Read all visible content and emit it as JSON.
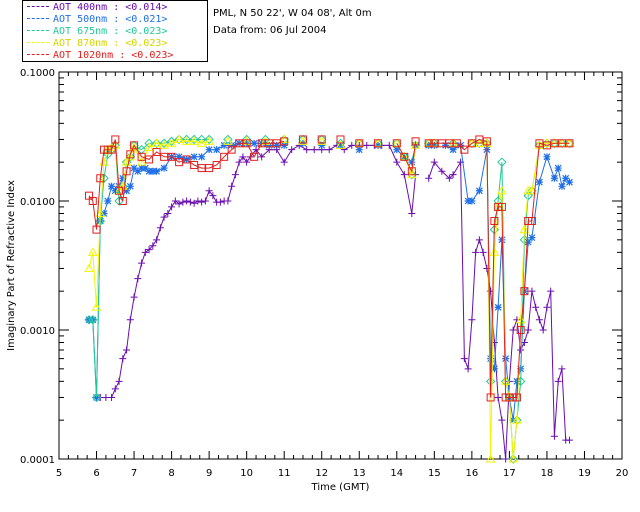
{
  "info": {
    "site": "PML, N 50 22', W 04 08', Alt 0m",
    "date": "Data from: 06 Jul 2004"
  },
  "chart_data": {
    "type": "line",
    "title": "",
    "xlabel": "Time (GMT)",
    "ylabel": "Imaginary Part of Refractive Index",
    "xlim": [
      5,
      20
    ],
    "ylim": [
      0.0001,
      0.1
    ],
    "yscale": "log",
    "x_ticks": [
      "5",
      "6",
      "7",
      "8",
      "9",
      "10",
      "11",
      "12",
      "13",
      "14",
      "15",
      "16",
      "17",
      "18",
      "19",
      "20"
    ],
    "y_ticks": [
      "0.0001",
      "0.0010",
      "0.0100",
      "0.1000"
    ],
    "legend": [
      "AOT  400nm : <0.014>",
      "AOT  500nm : <0.021>",
      "AOT  675nm : <0.023>",
      "AOT  870nm : <0.023>",
      "AOT 1020nm : <0.023>"
    ],
    "series": [
      {
        "name": "AOT 400nm",
        "color": "#6a0dad",
        "marker": "plus",
        "x": [
          6.0,
          6.1,
          6.25,
          6.4,
          6.5,
          6.6,
          6.7,
          6.8,
          6.9,
          7.0,
          7.1,
          7.2,
          7.3,
          7.4,
          7.5,
          7.6,
          7.7,
          7.8,
          7.9,
          8.0,
          8.1,
          8.2,
          8.3,
          8.4,
          8.5,
          8.6,
          8.7,
          8.8,
          8.9,
          9.0,
          9.1,
          9.2,
          9.3,
          9.4,
          9.5,
          9.6,
          9.7,
          9.8,
          9.9,
          10.0,
          10.1,
          10.25,
          10.4,
          10.6,
          10.8,
          11.0,
          11.2,
          11.4,
          11.6,
          11.8,
          12.0,
          12.2,
          12.4,
          12.6,
          12.8,
          13.0,
          13.2,
          13.4,
          13.6,
          13.8,
          14.0,
          14.2,
          14.4,
          14.5,
          14.85,
          15.0,
          15.2,
          15.4,
          15.5,
          15.7,
          15.8,
          15.9,
          16.0,
          16.1,
          16.2,
          16.3,
          16.4,
          16.5,
          16.6,
          16.7,
          16.8,
          16.9,
          17.0,
          17.1,
          17.2,
          17.3,
          17.4,
          17.5,
          17.6,
          17.7,
          17.8,
          17.9,
          18.0,
          18.1,
          18.2,
          18.3,
          18.4,
          18.5,
          18.6
        ],
        "values": [
          0.0003,
          0.0003,
          0.0003,
          0.0003,
          0.00035,
          0.0004,
          0.0006,
          0.0007,
          0.0012,
          0.0018,
          0.0025,
          0.0033,
          0.004,
          0.0042,
          0.0045,
          0.005,
          0.0062,
          0.0075,
          0.008,
          0.009,
          0.01,
          0.0095,
          0.0098,
          0.01,
          0.0098,
          0.0096,
          0.01,
          0.0098,
          0.01,
          0.012,
          0.011,
          0.0098,
          0.0098,
          0.01,
          0.01,
          0.013,
          0.016,
          0.02,
          0.022,
          0.02,
          0.022,
          0.025,
          0.022,
          0.025,
          0.025,
          0.02,
          0.025,
          0.027,
          0.025,
          0.025,
          0.025,
          0.025,
          0.027,
          0.025,
          0.027,
          0.027,
          0.027,
          0.027,
          0.027,
          0.027,
          0.02,
          0.016,
          0.008,
          0.016,
          0.015,
          0.02,
          0.017,
          0.015,
          0.016,
          0.02,
          0.0006,
          0.0005,
          0.0012,
          0.004,
          0.005,
          0.004,
          0.003,
          0.002,
          0.0008,
          0.0003,
          0.0002,
          0.0001,
          0.0004,
          0.001,
          0.0012,
          0.0007,
          0.0008,
          0.001,
          0.002,
          0.0015,
          0.0012,
          0.001,
          0.0015,
          0.002,
          0.00015,
          0.0004,
          0.0005,
          0.00014,
          0.00014
        ]
      },
      {
        "name": "AOT 500nm",
        "color": "#1e6fe8",
        "marker": "star",
        "x": [
          5.8,
          5.9,
          6.0,
          6.1,
          6.2,
          6.3,
          6.4,
          6.5,
          6.6,
          6.7,
          6.8,
          6.9,
          7.0,
          7.1,
          7.2,
          7.3,
          7.4,
          7.5,
          7.6,
          7.8,
          8.0,
          8.2,
          8.4,
          8.6,
          8.8,
          9.0,
          9.2,
          9.4,
          9.6,
          9.8,
          10.0,
          10.2,
          10.4,
          10.6,
          10.8,
          11.0,
          11.5,
          12.0,
          12.5,
          13.0,
          13.5,
          14.0,
          14.2,
          14.4,
          14.5,
          14.85,
          15.0,
          15.3,
          15.5,
          15.7,
          15.9,
          16.0,
          16.2,
          16.4,
          16.5,
          16.6,
          16.7,
          16.8,
          16.9,
          17.0,
          17.1,
          17.2,
          17.3,
          17.4,
          17.5,
          17.6,
          17.8,
          18.0,
          18.2,
          18.3,
          18.4,
          18.5,
          18.6
        ],
        "values": [
          0.0012,
          0.0012,
          0.0003,
          0.007,
          0.008,
          0.01,
          0.013,
          0.012,
          0.013,
          0.015,
          0.012,
          0.013,
          0.018,
          0.017,
          0.018,
          0.018,
          0.017,
          0.017,
          0.017,
          0.018,
          0.022,
          0.022,
          0.021,
          0.022,
          0.022,
          0.025,
          0.025,
          0.027,
          0.027,
          0.028,
          0.028,
          0.028,
          0.028,
          0.027,
          0.027,
          0.027,
          0.028,
          0.027,
          0.027,
          0.025,
          0.027,
          0.025,
          0.022,
          0.02,
          0.027,
          0.027,
          0.027,
          0.027,
          0.025,
          0.027,
          0.01,
          0.01,
          0.012,
          0.025,
          0.0006,
          0.0005,
          0.0015,
          0.005,
          0.0006,
          0.0003,
          0.0002,
          0.0004,
          0.0005,
          0.002,
          0.0048,
          0.0052,
          0.014,
          0.022,
          0.015,
          0.018,
          0.013,
          0.015,
          0.014
        ]
      },
      {
        "name": "AOT 675nm",
        "color": "#20c997",
        "marker": "diamond",
        "x": [
          5.8,
          5.9,
          6.0,
          6.1,
          6.2,
          6.3,
          6.4,
          6.5,
          6.6,
          6.7,
          6.8,
          6.9,
          7.0,
          7.2,
          7.4,
          7.6,
          7.8,
          8.0,
          8.2,
          8.4,
          8.6,
          8.8,
          9.0,
          9.5,
          10.0,
          10.5,
          11.0,
          11.5,
          12.0,
          12.5,
          13.0,
          13.5,
          14.0,
          14.2,
          14.4,
          14.5,
          14.85,
          15.0,
          15.5,
          16.0,
          16.2,
          16.4,
          16.5,
          16.6,
          16.7,
          16.8,
          16.9,
          17.0,
          17.1,
          17.2,
          17.3,
          17.4,
          17.5,
          17.6,
          17.8,
          18.0,
          18.2,
          18.4,
          18.6
        ],
        "values": [
          0.0012,
          0.0012,
          0.0003,
          0.007,
          0.015,
          0.023,
          0.025,
          0.027,
          0.01,
          0.013,
          0.02,
          0.022,
          0.027,
          0.025,
          0.028,
          0.028,
          0.028,
          0.029,
          0.03,
          0.03,
          0.03,
          0.03,
          0.03,
          0.03,
          0.03,
          0.03,
          0.03,
          0.03,
          0.03,
          0.028,
          0.028,
          0.028,
          0.028,
          0.022,
          0.016,
          0.027,
          0.028,
          0.028,
          0.028,
          0.028,
          0.028,
          0.028,
          0.0004,
          0.006,
          0.01,
          0.02,
          0.0004,
          0.0003,
          0.0001,
          0.0002,
          0.0004,
          0.005,
          0.011,
          0.012,
          0.027,
          0.028,
          0.028,
          0.028,
          0.028
        ]
      },
      {
        "name": "AOT 870nm",
        "color": "#f5f500",
        "marker": "triangle",
        "x": [
          5.8,
          5.9,
          6.0,
          6.1,
          6.2,
          6.3,
          6.4,
          6.5,
          6.6,
          6.7,
          6.8,
          6.9,
          7.0,
          7.2,
          7.4,
          7.6,
          7.8,
          8.0,
          8.2,
          8.4,
          8.6,
          8.8,
          9.0,
          9.5,
          10.0,
          10.5,
          11.0,
          11.5,
          12.0,
          12.5,
          13.0,
          13.5,
          14.0,
          14.2,
          14.4,
          14.5,
          14.85,
          15.0,
          15.5,
          16.0,
          16.2,
          16.4,
          16.5,
          16.6,
          16.7,
          16.8,
          16.9,
          17.0,
          17.1,
          17.2,
          17.3,
          17.4,
          17.5,
          17.6,
          17.8,
          18.0,
          18.2,
          18.4,
          18.6
        ],
        "values": [
          0.003,
          0.004,
          0.0015,
          0.008,
          0.02,
          0.025,
          0.026,
          0.027,
          0.012,
          0.013,
          0.02,
          0.022,
          0.026,
          0.02,
          0.026,
          0.028,
          0.027,
          0.028,
          0.03,
          0.029,
          0.029,
          0.028,
          0.029,
          0.029,
          0.029,
          0.029,
          0.03,
          0.029,
          0.029,
          0.027,
          0.028,
          0.028,
          0.028,
          0.022,
          0.016,
          0.027,
          0.028,
          0.028,
          0.028,
          0.028,
          0.028,
          0.028,
          0.0001,
          0.004,
          0.009,
          0.012,
          0.0004,
          0.0003,
          0.0001,
          0.0002,
          0.0012,
          0.006,
          0.012,
          0.012,
          0.027,
          0.028,
          0.028,
          0.028,
          0.028
        ]
      },
      {
        "name": "AOT 1020nm",
        "color": "#e0201e",
        "marker": "square",
        "x": [
          5.8,
          5.9,
          6.0,
          6.1,
          6.2,
          6.3,
          6.4,
          6.5,
          6.6,
          6.7,
          6.8,
          6.9,
          7.0,
          7.2,
          7.4,
          7.6,
          7.8,
          8.0,
          8.2,
          8.4,
          8.6,
          8.8,
          9.0,
          9.2,
          9.4,
          9.6,
          9.8,
          10.0,
          10.2,
          10.4,
          10.6,
          10.8,
          11.0,
          11.5,
          12.0,
          12.5,
          13.0,
          13.5,
          14.0,
          14.2,
          14.4,
          14.5,
          14.85,
          15.0,
          15.2,
          15.4,
          15.6,
          15.8,
          16.0,
          16.2,
          16.4,
          16.5,
          16.6,
          16.7,
          16.8,
          16.9,
          17.0,
          17.1,
          17.2,
          17.3,
          17.4,
          17.5,
          17.6,
          17.8,
          18.0,
          18.2,
          18.4,
          18.6
        ],
        "values": [
          0.011,
          0.01,
          0.006,
          0.015,
          0.025,
          0.025,
          0.025,
          0.03,
          0.012,
          0.01,
          0.017,
          0.023,
          0.027,
          0.022,
          0.021,
          0.024,
          0.022,
          0.022,
          0.02,
          0.021,
          0.019,
          0.018,
          0.018,
          0.019,
          0.022,
          0.025,
          0.028,
          0.028,
          0.022,
          0.028,
          0.028,
          0.028,
          0.029,
          0.03,
          0.03,
          0.03,
          0.028,
          0.028,
          0.028,
          0.022,
          0.017,
          0.029,
          0.028,
          0.028,
          0.028,
          0.028,
          0.028,
          0.025,
          0.028,
          0.03,
          0.029,
          0.0003,
          0.007,
          0.009,
          0.009,
          0.0003,
          0.0003,
          0.0003,
          0.0003,
          0.001,
          0.002,
          0.007,
          0.007,
          0.028,
          0.027,
          0.028,
          0.028,
          0.028
        ]
      }
    ]
  }
}
